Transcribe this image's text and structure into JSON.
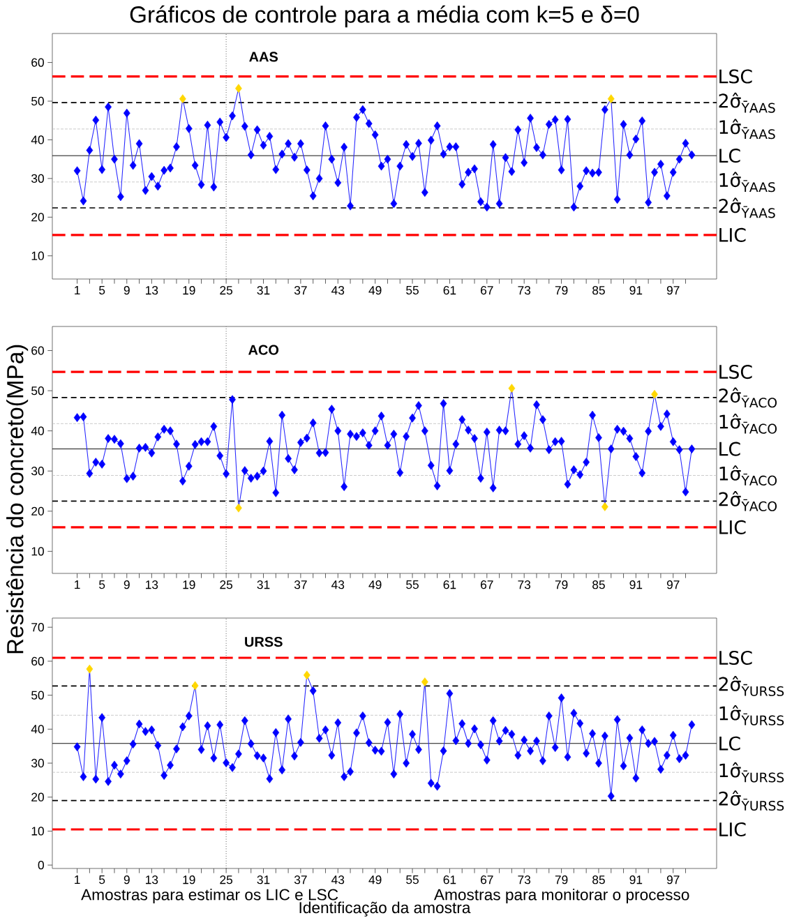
{
  "chart_data": [
    {
      "type": "line",
      "title": "Gráficos de controle para a média com k=5 e δ=0",
      "subtitle": "AAS",
      "marker": "diamond",
      "line_style": "solid",
      "color": "#0000ff",
      "x": [
        1,
        2,
        3,
        4,
        5,
        6,
        7,
        8,
        9,
        10,
        11,
        12,
        13,
        14,
        15,
        16,
        17,
        18,
        19,
        20,
        21,
        22,
        23,
        24,
        25,
        26,
        27,
        28,
        29,
        30,
        31,
        32,
        33,
        34,
        35,
        36,
        37,
        38,
        39,
        40,
        41,
        42,
        43,
        44,
        45,
        46,
        47,
        48,
        49,
        50,
        51,
        52,
        53,
        54,
        55,
        56,
        57,
        58,
        59,
        60,
        61,
        62,
        63,
        64,
        65,
        66,
        67,
        68,
        69,
        70,
        71,
        72,
        73,
        74,
        75,
        76,
        77,
        78,
        79,
        80,
        81,
        82,
        83,
        84,
        85,
        86,
        87,
        88,
        89,
        90,
        91,
        92,
        93,
        94,
        95,
        96,
        97,
        98,
        99,
        100
      ],
      "values": [
        32.0,
        24.2,
        37.3,
        45.1,
        32.3,
        48.5,
        35.0,
        25.3,
        46.9,
        33.4,
        39.0,
        26.9,
        30.5,
        28.0,
        32.1,
        32.7,
        38.2,
        50.6,
        42.9,
        33.4,
        28.4,
        43.8,
        27.8,
        44.6,
        40.6,
        46.2,
        53.3,
        43.5,
        36.1,
        42.6,
        38.6,
        40.9,
        32.3,
        36.3,
        39.0,
        35.5,
        39.0,
        32.2,
        25.5,
        30.0,
        43.6,
        35.0,
        28.9,
        38.1,
        22.9,
        45.8,
        47.8,
        44.2,
        41.3,
        33.2,
        35.0,
        23.5,
        33.2,
        38.8,
        35.7,
        39.1,
        26.4,
        39.9,
        43.6,
        36.3,
        38.2,
        38.2,
        28.5,
        31.6,
        32.5,
        24.0,
        22.6,
        38.8,
        23.5,
        35.4,
        31.8,
        42.6,
        34.1,
        45.6,
        38.0,
        36.1,
        44.0,
        45.2,
        32.2,
        45.3,
        22.6,
        28.0,
        32.0,
        31.4,
        31.6,
        47.8,
        50.6,
        24.6,
        44.0,
        36.1,
        40.2,
        44.9,
        23.8,
        31.6,
        33.7,
        25.5,
        31.6,
        35.0,
        39.1,
        36.1
      ],
      "colors": [
        "#0000ff",
        "#0000ff",
        "#0000ff",
        "#0000ff",
        "#0000ff",
        "#0000ff",
        "#0000ff",
        "#0000ff",
        "#0000ff",
        "#0000ff",
        "#0000ff",
        "#0000ff",
        "#0000ff",
        "#0000ff",
        "#0000ff",
        "#0000ff",
        "#0000ff",
        "#ffd700",
        "#0000ff",
        "#0000ff",
        "#0000ff",
        "#0000ff",
        "#0000ff",
        "#0000ff",
        "#0000ff",
        "#0000ff",
        "#ffd700",
        "#0000ff",
        "#0000ff",
        "#0000ff",
        "#0000ff",
        "#0000ff",
        "#0000ff",
        "#0000ff",
        "#0000ff",
        "#0000ff",
        "#0000ff",
        "#0000ff",
        "#0000ff",
        "#0000ff",
        "#0000ff",
        "#0000ff",
        "#0000ff",
        "#0000ff",
        "#0000ff",
        "#0000ff",
        "#0000ff",
        "#0000ff",
        "#0000ff",
        "#0000ff",
        "#0000ff",
        "#0000ff",
        "#0000ff",
        "#0000ff",
        "#0000ff",
        "#0000ff",
        "#0000ff",
        "#0000ff",
        "#0000ff",
        "#0000ff",
        "#0000ff",
        "#0000ff",
        "#0000ff",
        "#0000ff",
        "#0000ff",
        "#0000ff",
        "#0000ff",
        "#0000ff",
        "#0000ff",
        "#0000ff",
        "#0000ff",
        "#0000ff",
        "#0000ff",
        "#0000ff",
        "#0000ff",
        "#0000ff",
        "#0000ff",
        "#0000ff",
        "#0000ff",
        "#0000ff",
        "#0000ff",
        "#0000ff",
        "#0000ff",
        "#0000ff",
        "#0000ff",
        "#0000ff",
        "#ffd700",
        "#0000ff",
        "#0000ff",
        "#0000ff",
        "#0000ff",
        "#0000ff",
        "#0000ff",
        "#0000ff",
        "#0000ff",
        "#0000ff",
        "#0000ff",
        "#0000ff",
        "#0000ff",
        "#0000ff"
      ],
      "xlim": [
        -3,
        104
      ],
      "ylim": [
        4,
        67.5
      ],
      "xticks": [
        1,
        {
          "value": 3,
          "label": null
        },
        5,
        {
          "value": 7,
          "label": null
        },
        9,
        {
          "value": 11,
          "label": null
        },
        13,
        {
          "value": 15,
          "label": null
        },
        {
          "value": 17,
          "label": null
        },
        19,
        {
          "value": 21,
          "label": null
        },
        {
          "value": 23,
          "label": null
        },
        25,
        {
          "value": 27,
          "label": null
        },
        {
          "value": 29,
          "label": null
        },
        31,
        {
          "value": 33,
          "label": null
        },
        {
          "value": 35,
          "label": null
        },
        37,
        {
          "value": 39,
          "label": null
        },
        {
          "value": 41,
          "label": null
        },
        43,
        {
          "value": 45,
          "label": null
        },
        {
          "value": 47,
          "label": null
        },
        49,
        {
          "value": 51,
          "label": null
        },
        {
          "value": 53,
          "label": null
        },
        55,
        {
          "value": 57,
          "label": null
        },
        {
          "value": 59,
          "label": null
        },
        61,
        {
          "value": 63,
          "label": null
        },
        {
          "value": 65,
          "label": null
        },
        67,
        {
          "value": 69,
          "label": null
        },
        {
          "value": 71,
          "label": null
        },
        73,
        {
          "value": 75,
          "label": null
        },
        {
          "value": 77,
          "label": null
        },
        79,
        {
          "value": 81,
          "label": null
        },
        {
          "value": 83,
          "label": null
        },
        85,
        {
          "value": 87,
          "label": null
        },
        {
          "value": 89,
          "label": null
        },
        91,
        {
          "value": 93,
          "label": null
        },
        {
          "value": 95,
          "label": null
        },
        97,
        {
          "value": 99,
          "label": null
        }
      ],
      "yticks": [
        10,
        20,
        30,
        40,
        50,
        60
      ],
      "ref_lines": [
        {
          "axis": "y",
          "value": 56.4,
          "label": "LSC",
          "color": "#ff0000",
          "line_style": "dashed"
        },
        {
          "axis": "y",
          "value": 49.6,
          "label": "2σ̂$_{ȲAAS}$",
          "color": "#000000",
          "line_style": "dashed"
        },
        {
          "axis": "y",
          "value": 42.8,
          "label": "1σ̂$_{ȲAAS}$",
          "color": "#bebebe",
          "line_style": "dotted"
        },
        {
          "axis": "y",
          "value": 35.9,
          "label": "LC",
          "color": "#000000",
          "line_style": "solid"
        },
        {
          "axis": "y",
          "value": 29.1,
          "label": "1σ̂$_{ȲAAS}$",
          "color": "#bebebe",
          "line_style": "dotted"
        },
        {
          "axis": "y",
          "value": 22.4,
          "label": "2σ̂$_{ȲAAS}$",
          "color": "#000000",
          "line_style": "dashed"
        },
        {
          "axis": "y",
          "value": 15.4,
          "label": "LIC",
          "color": "#ff0000",
          "line_style": "dashed"
        },
        {
          "axis": "x",
          "value": 25,
          "color": "#000000",
          "line_style": "dotted"
        }
      ]
    },
    {
      "type": "line",
      "title": "ACO",
      "ylabel": "Resistência do concreto(MPa)",
      "marker": "diamond",
      "line_style": "solid",
      "color": "#0000ff",
      "x": [
        1,
        2,
        3,
        4,
        5,
        6,
        7,
        8,
        9,
        10,
        11,
        12,
        13,
        14,
        15,
        16,
        17,
        18,
        19,
        20,
        21,
        22,
        23,
        24,
        25,
        26,
        27,
        28,
        29,
        30,
        31,
        32,
        33,
        34,
        35,
        36,
        37,
        38,
        39,
        40,
        41,
        42,
        43,
        44,
        45,
        46,
        47,
        48,
        49,
        50,
        51,
        52,
        53,
        54,
        55,
        56,
        57,
        58,
        59,
        60,
        61,
        62,
        63,
        64,
        65,
        66,
        67,
        68,
        69,
        70,
        71,
        72,
        73,
        74,
        75,
        76,
        77,
        78,
        79,
        80,
        81,
        82,
        83,
        84,
        85,
        86,
        87,
        88,
        89,
        90,
        91,
        92,
        93,
        94,
        95,
        96,
        97,
        98,
        99,
        100
      ],
      "values": [
        43.3,
        43.5,
        29.4,
        32.2,
        31.7,
        38.1,
        37.9,
        36.8,
        28.1,
        28.7,
        35.7,
        35.9,
        34.5,
        38.5,
        40.4,
        40.0,
        36.7,
        27.5,
        31.2,
        36.6,
        37.3,
        37.3,
        41.1,
        33.8,
        29.3,
        47.8,
        20.8,
        30.1,
        28.2,
        28.7,
        30.0,
        37.4,
        24.6,
        43.9,
        33.1,
        30.3,
        37.1,
        38.2,
        42.0,
        34.5,
        34.6,
        45.4,
        40.0,
        26.1,
        39.2,
        38.6,
        39.5,
        36.4,
        40.0,
        43.7,
        36.4,
        39.2,
        29.6,
        38.6,
        43.2,
        46.3,
        40.0,
        31.4,
        26.3,
        46.8,
        30.1,
        36.7,
        42.8,
        40.2,
        38.1,
        28.2,
        39.7,
        25.8,
        40.2,
        40.0,
        50.6,
        36.7,
        38.8,
        35.7,
        46.5,
        42.8,
        35.3,
        37.3,
        37.4,
        26.7,
        30.3,
        29.1,
        32.2,
        43.9,
        38.3,
        21.1,
        35.5,
        40.4,
        39.9,
        38.1,
        33.6,
        29.5,
        39.9,
        49.1,
        41.1,
        44.2,
        37.3,
        35.3,
        24.8,
        35.5
      ],
      "colors": [
        "#0000ff",
        "#0000ff",
        "#0000ff",
        "#0000ff",
        "#0000ff",
        "#0000ff",
        "#0000ff",
        "#0000ff",
        "#0000ff",
        "#0000ff",
        "#0000ff",
        "#0000ff",
        "#0000ff",
        "#0000ff",
        "#0000ff",
        "#0000ff",
        "#0000ff",
        "#0000ff",
        "#0000ff",
        "#0000ff",
        "#0000ff",
        "#0000ff",
        "#0000ff",
        "#0000ff",
        "#0000ff",
        "#0000ff",
        "#ffd700",
        "#0000ff",
        "#0000ff",
        "#0000ff",
        "#0000ff",
        "#0000ff",
        "#0000ff",
        "#0000ff",
        "#0000ff",
        "#0000ff",
        "#0000ff",
        "#0000ff",
        "#0000ff",
        "#0000ff",
        "#0000ff",
        "#0000ff",
        "#0000ff",
        "#0000ff",
        "#0000ff",
        "#0000ff",
        "#0000ff",
        "#0000ff",
        "#0000ff",
        "#0000ff",
        "#0000ff",
        "#0000ff",
        "#0000ff",
        "#0000ff",
        "#0000ff",
        "#0000ff",
        "#0000ff",
        "#0000ff",
        "#0000ff",
        "#0000ff",
        "#0000ff",
        "#0000ff",
        "#0000ff",
        "#0000ff",
        "#0000ff",
        "#0000ff",
        "#0000ff",
        "#0000ff",
        "#0000ff",
        "#0000ff",
        "#ffd700",
        "#0000ff",
        "#0000ff",
        "#0000ff",
        "#0000ff",
        "#0000ff",
        "#0000ff",
        "#0000ff",
        "#0000ff",
        "#0000ff",
        "#0000ff",
        "#0000ff",
        "#0000ff",
        "#0000ff",
        "#0000ff",
        "#ffd700",
        "#0000ff",
        "#0000ff",
        "#0000ff",
        "#0000ff",
        "#0000ff",
        "#0000ff",
        "#0000ff",
        "#ffd700",
        "#0000ff",
        "#0000ff",
        "#0000ff",
        "#0000ff",
        "#0000ff",
        "#0000ff"
      ],
      "xlim": [
        -3,
        104
      ],
      "ylim": [
        4.5,
        66
      ],
      "xticks": [
        1,
        {
          "value": 3,
          "label": null
        },
        5,
        {
          "value": 7,
          "label": null
        },
        9,
        {
          "value": 11,
          "label": null
        },
        13,
        {
          "value": 15,
          "label": null
        },
        {
          "value": 17,
          "label": null
        },
        19,
        {
          "value": 21,
          "label": null
        },
        {
          "value": 23,
          "label": null
        },
        25,
        {
          "value": 27,
          "label": null
        },
        {
          "value": 29,
          "label": null
        },
        31,
        {
          "value": 33,
          "label": null
        },
        {
          "value": 35,
          "label": null
        },
        37,
        {
          "value": 39,
          "label": null
        },
        {
          "value": 41,
          "label": null
        },
        43,
        {
          "value": 45,
          "label": null
        },
        {
          "value": 47,
          "label": null
        },
        49,
        {
          "value": 51,
          "label": null
        },
        {
          "value": 53,
          "label": null
        },
        55,
        {
          "value": 57,
          "label": null
        },
        {
          "value": 59,
          "label": null
        },
        61,
        {
          "value": 63,
          "label": null
        },
        {
          "value": 65,
          "label": null
        },
        67,
        {
          "value": 69,
          "label": null
        },
        {
          "value": 71,
          "label": null
        },
        73,
        {
          "value": 75,
          "label": null
        },
        {
          "value": 77,
          "label": null
        },
        79,
        {
          "value": 81,
          "label": null
        },
        {
          "value": 83,
          "label": null
        },
        85,
        {
          "value": 87,
          "label": null
        },
        {
          "value": 89,
          "label": null
        },
        91,
        {
          "value": 93,
          "label": null
        },
        {
          "value": 95,
          "label": null
        },
        97,
        {
          "value": 99,
          "label": null
        }
      ],
      "yticks": [
        10,
        20,
        30,
        40,
        50,
        60
      ],
      "ref_lines": [
        {
          "axis": "y",
          "value": 54.7,
          "label": "LSC",
          "color": "#ff0000",
          "line_style": "dashed"
        },
        {
          "axis": "y",
          "value": 48.3,
          "label": "2σ̂$_{ȲACO}$",
          "color": "#000000",
          "line_style": "dashed"
        },
        {
          "axis": "y",
          "value": 41.8,
          "label": "1σ̂$_{ȲACO}$",
          "color": "#bebebe",
          "line_style": "dotted"
        },
        {
          "axis": "y",
          "value": 35.5,
          "label": "LC",
          "color": "#000000",
          "line_style": "solid"
        },
        {
          "axis": "y",
          "value": 28.9,
          "label": "1σ̂$_{ȲACO}$",
          "color": "#bebebe",
          "line_style": "dotted"
        },
        {
          "axis": "y",
          "value": 22.5,
          "label": "2σ̂$_{ȲACO}$",
          "color": "#000000",
          "line_style": "dashed"
        },
        {
          "axis": "y",
          "value": 16.0,
          "label": "LIC",
          "color": "#ff0000",
          "line_style": "dashed"
        },
        {
          "axis": "x",
          "value": 25,
          "color": "#000000",
          "line_style": "dotted"
        }
      ]
    },
    {
      "type": "line",
      "title": "URSS",
      "xlabel": "Identificação da amostra",
      "marker": "diamond",
      "line_style": "solid",
      "color": "#0000ff",
      "annotations": [
        "Amostras para estimar os LIC e LSC",
        "Amostras para monitorar o processo"
      ],
      "x": [
        1,
        2,
        3,
        4,
        5,
        6,
        7,
        8,
        9,
        10,
        11,
        12,
        13,
        14,
        15,
        16,
        17,
        18,
        19,
        20,
        21,
        22,
        23,
        24,
        25,
        26,
        27,
        28,
        29,
        30,
        31,
        32,
        33,
        34,
        35,
        36,
        37,
        38,
        39,
        40,
        41,
        42,
        43,
        44,
        45,
        46,
        47,
        48,
        49,
        50,
        51,
        52,
        53,
        54,
        55,
        56,
        57,
        58,
        59,
        60,
        61,
        62,
        63,
        64,
        65,
        66,
        67,
        68,
        69,
        70,
        71,
        72,
        73,
        74,
        75,
        76,
        77,
        78,
        79,
        80,
        81,
        82,
        83,
        84,
        85,
        86,
        87,
        88,
        89,
        90,
        91,
        92,
        93,
        94,
        95,
        96,
        97,
        98,
        99,
        100
      ],
      "values": [
        34.8,
        26.0,
        57.7,
        25.3,
        43.4,
        24.6,
        29.4,
        26.8,
        30.7,
        35.6,
        41.5,
        39.3,
        39.8,
        35.2,
        26.4,
        29.4,
        34.2,
        40.7,
        43.9,
        52.8,
        34.0,
        41.0,
        31.5,
        41.3,
        30.1,
        28.7,
        32.7,
        42.5,
        35.7,
        32.2,
        31.5,
        25.4,
        39.0,
        28.0,
        43.0,
        32.1,
        36.1,
        55.9,
        51.3,
        37.3,
        39.8,
        32.3,
        41.9,
        26.0,
        27.5,
        38.9,
        43.9,
        36.0,
        33.8,
        33.5,
        42.0,
        26.8,
        44.4,
        30.0,
        38.5,
        34.0,
        53.9,
        24.1,
        23.2,
        33.6,
        50.5,
        36.6,
        41.6,
        35.8,
        40.1,
        35.4,
        30.9,
        42.5,
        36.5,
        39.6,
        38.5,
        32.3,
        36.8,
        33.6,
        36.5,
        30.7,
        43.9,
        34.6,
        49.2,
        31.8,
        44.7,
        41.7,
        32.9,
        38.7,
        30.0,
        38.0,
        20.3,
        42.8,
        29.2,
        37.4,
        25.6,
        39.8,
        35.8,
        36.4,
        28.2,
        32.3,
        38.2,
        31.3,
        32.3,
        41.3
      ],
      "colors": [
        "#0000ff",
        "#0000ff",
        "#ffd700",
        "#0000ff",
        "#0000ff",
        "#0000ff",
        "#0000ff",
        "#0000ff",
        "#0000ff",
        "#0000ff",
        "#0000ff",
        "#0000ff",
        "#0000ff",
        "#0000ff",
        "#0000ff",
        "#0000ff",
        "#0000ff",
        "#0000ff",
        "#0000ff",
        "#ffd700",
        "#0000ff",
        "#0000ff",
        "#0000ff",
        "#0000ff",
        "#0000ff",
        "#0000ff",
        "#0000ff",
        "#0000ff",
        "#0000ff",
        "#0000ff",
        "#0000ff",
        "#0000ff",
        "#0000ff",
        "#0000ff",
        "#0000ff",
        "#0000ff",
        "#0000ff",
        "#ffd700",
        "#0000ff",
        "#0000ff",
        "#0000ff",
        "#0000ff",
        "#0000ff",
        "#0000ff",
        "#0000ff",
        "#0000ff",
        "#0000ff",
        "#0000ff",
        "#0000ff",
        "#0000ff",
        "#0000ff",
        "#0000ff",
        "#0000ff",
        "#0000ff",
        "#0000ff",
        "#0000ff",
        "#ffd700",
        "#0000ff",
        "#0000ff",
        "#0000ff",
        "#0000ff",
        "#0000ff",
        "#0000ff",
        "#0000ff",
        "#0000ff",
        "#0000ff",
        "#0000ff",
        "#0000ff",
        "#0000ff",
        "#0000ff",
        "#0000ff",
        "#0000ff",
        "#0000ff",
        "#0000ff",
        "#0000ff",
        "#0000ff",
        "#0000ff",
        "#0000ff",
        "#0000ff",
        "#0000ff",
        "#0000ff",
        "#0000ff",
        "#0000ff",
        "#0000ff",
        "#0000ff",
        "#0000ff",
        "#0000ff",
        "#0000ff",
        "#0000ff",
        "#0000ff",
        "#0000ff",
        "#0000ff",
        "#0000ff",
        "#0000ff",
        "#0000ff",
        "#0000ff",
        "#0000ff",
        "#0000ff",
        "#0000ff",
        "#0000ff"
      ],
      "xlim": [
        -3,
        104
      ],
      "ylim": [
        -1,
        72.7
      ],
      "xticks": [
        1,
        {
          "value": 3,
          "label": null
        },
        5,
        {
          "value": 7,
          "label": null
        },
        9,
        {
          "value": 11,
          "label": null
        },
        13,
        {
          "value": 15,
          "label": null
        },
        {
          "value": 17,
          "label": null
        },
        19,
        {
          "value": 21,
          "label": null
        },
        {
          "value": 23,
          "label": null
        },
        25,
        {
          "value": 27,
          "label": null
        },
        {
          "value": 29,
          "label": null
        },
        31,
        {
          "value": 33,
          "label": null
        },
        {
          "value": 35,
          "label": null
        },
        37,
        {
          "value": 39,
          "label": null
        },
        {
          "value": 41,
          "label": null
        },
        43,
        {
          "value": 45,
          "label": null
        },
        {
          "value": 47,
          "label": null
        },
        49,
        {
          "value": 51,
          "label": null
        },
        {
          "value": 53,
          "label": null
        },
        55,
        {
          "value": 57,
          "label": null
        },
        {
          "value": 59,
          "label": null
        },
        61,
        {
          "value": 63,
          "label": null
        },
        {
          "value": 65,
          "label": null
        },
        67,
        {
          "value": 69,
          "label": null
        },
        {
          "value": 71,
          "label": null
        },
        73,
        {
          "value": 75,
          "label": null
        },
        {
          "value": 77,
          "label": null
        },
        79,
        {
          "value": 81,
          "label": null
        },
        {
          "value": 83,
          "label": null
        },
        85,
        {
          "value": 87,
          "label": null
        },
        {
          "value": 89,
          "label": null
        },
        91,
        {
          "value": 93,
          "label": null
        },
        {
          "value": 95,
          "label": null
        },
        97,
        {
          "value": 99,
          "label": null
        }
      ],
      "yticks": [
        0,
        10,
        20,
        30,
        40,
        50,
        60,
        70
      ],
      "ref_lines": [
        {
          "axis": "y",
          "value": 61.0,
          "label": "LSC",
          "color": "#ff0000",
          "line_style": "dashed"
        },
        {
          "axis": "y",
          "value": 52.7,
          "label": "2σ̂$_{ȲURSS}$",
          "color": "#000000",
          "line_style": "dashed"
        },
        {
          "axis": "y",
          "value": 44.1,
          "label": "1σ̂$_{ȲURSS}$",
          "color": "#bebebe",
          "line_style": "dotted"
        },
        {
          "axis": "y",
          "value": 35.8,
          "label": "LC",
          "color": "#000000",
          "line_style": "solid"
        },
        {
          "axis": "y",
          "value": 27.3,
          "label": "1σ̂$_{ȲURSS}$",
          "color": "#bebebe",
          "line_style": "dotted"
        },
        {
          "axis": "y",
          "value": 19.0,
          "label": "2σ̂$_{ȲURSS}$",
          "color": "#000000",
          "line_style": "dashed"
        },
        {
          "axis": "y",
          "value": 10.5,
          "label": "LIC",
          "color": "#ff0000",
          "line_style": "dashed"
        },
        {
          "axis": "x",
          "value": 25,
          "color": "#000000",
          "line_style": "dotted"
        }
      ]
    }
  ]
}
